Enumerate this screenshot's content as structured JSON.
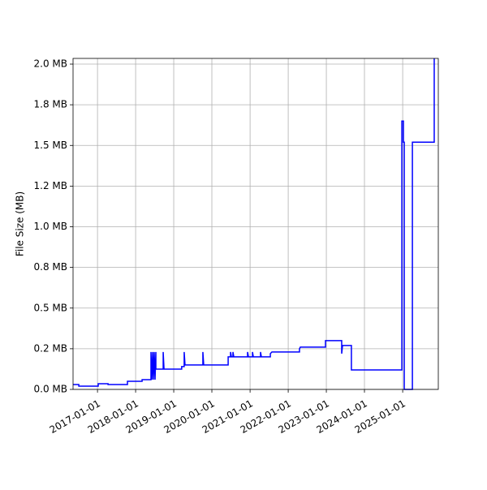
{
  "chart_data": {
    "type": "line",
    "ylabel": "File Size (MB)",
    "xlim": [
      "2016-05-12",
      "2025-12-08"
    ],
    "xticks": [
      "2017-01-01",
      "2018-01-01",
      "2019-01-01",
      "2020-01-01",
      "2021-01-01",
      "2022-01-01",
      "2023-01-01",
      "2024-01-01",
      "2025-01-01"
    ],
    "ylim": [
      0,
      2.035
    ],
    "yticks": [
      {
        "value": 0,
        "label": "0.0 MB"
      },
      {
        "value": 0.25,
        "label": "0.2 MB"
      },
      {
        "value": 0.5,
        "label": "0.5 MB"
      },
      {
        "value": 0.75,
        "label": "0.8 MB"
      },
      {
        "value": 1.0,
        "label": "1.0 MB"
      },
      {
        "value": 1.25,
        "label": "1.2 MB"
      },
      {
        "value": 1.5,
        "label": "1.5 MB"
      },
      {
        "value": 1.75,
        "label": "1.8 MB"
      },
      {
        "value": 2.0,
        "label": "2.0 MB"
      }
    ],
    "grid": true,
    "x": [
      "2016-05-12",
      "2016-07-06",
      "2016-07-06",
      "2017-01-08",
      "2017-01-08",
      "2017-04-12",
      "2017-04-12",
      "2017-10-15",
      "2017-10-15",
      "2018-03-04",
      "2018-03-04",
      "2018-05-28",
      "2018-05-28",
      "2018-06-05",
      "2018-06-13",
      "2018-06-20",
      "2018-06-28",
      "2018-07-06",
      "2018-07-14",
      "2018-07-14",
      "2018-09-22",
      "2018-09-22",
      "2018-09-30",
      "2019-03-18",
      "2019-03-18",
      "2019-04-11",
      "2019-04-11",
      "2019-04-19",
      "2019-10-07",
      "2019-10-07",
      "2019-10-15",
      "2020-06-05",
      "2020-06-05",
      "2020-06-28",
      "2020-06-28",
      "2020-07-06",
      "2020-07-21",
      "2020-07-21",
      "2020-07-29",
      "2020-12-08",
      "2020-12-08",
      "2020-12-16",
      "2021-01-24",
      "2021-01-24",
      "2021-02-01",
      "2021-04-11",
      "2021-04-11",
      "2021-04-19",
      "2021-07-14",
      "2021-07-14",
      "2021-07-29",
      "2022-04-19",
      "2022-04-19",
      "2022-04-27",
      "2022-12-24",
      "2022-12-24",
      "2023-05-28",
      "2023-05-28",
      "2023-06-05",
      "2023-08-29",
      "2023-08-29",
      "2024-12-24",
      "2024-12-24",
      "2025-01-08",
      "2025-01-08",
      "2025-01-16",
      "2025-01-16",
      "2025-04-04",
      "2025-04-04",
      "2025-10-30",
      "2025-10-30"
    ],
    "series": [
      {
        "name": "File Size",
        "color": "#0000ff",
        "values": [
          0.03,
          0.03,
          0.02,
          0.02,
          0.035,
          0.035,
          0.03,
          0.03,
          0.05,
          0.05,
          0.06,
          0.06,
          0.23,
          0.06,
          0.23,
          0.06,
          0.23,
          0.06,
          0.23,
          0.125,
          0.125,
          0.23,
          0.125,
          0.125,
          0.14,
          0.14,
          0.23,
          0.15,
          0.15,
          0.23,
          0.15,
          0.15,
          0.2,
          0.2,
          0.23,
          0.2,
          0.2,
          0.23,
          0.2,
          0.2,
          0.23,
          0.2,
          0.2,
          0.23,
          0.2,
          0.2,
          0.23,
          0.2,
          0.2,
          0.22,
          0.23,
          0.23,
          0.25,
          0.26,
          0.26,
          0.3,
          0.3,
          0.22,
          0.27,
          0.27,
          0.12,
          0.12,
          1.65,
          1.65,
          1.52,
          1.52,
          0,
          0,
          1.52,
          1.52,
          2.035
        ]
      }
    ]
  }
}
